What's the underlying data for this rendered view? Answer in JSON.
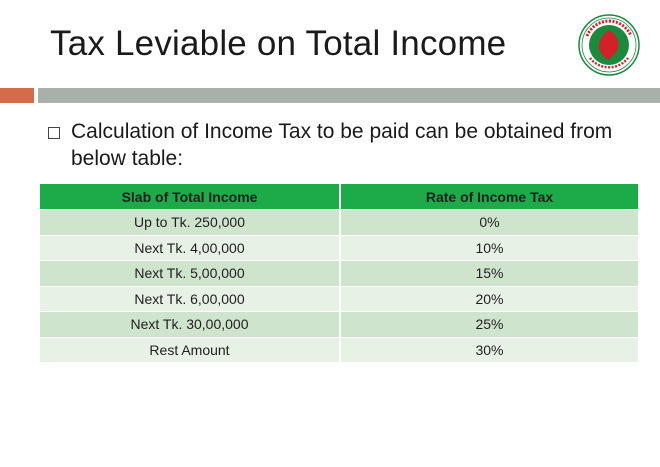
{
  "slide": {
    "title": "Tax Leviable on Total Income",
    "bullet": "Calculation of Income Tax to be paid can be obtained from below table:"
  },
  "table": {
    "headers": [
      "Slab of Total Income",
      "Rate of Income Tax"
    ],
    "rows": [
      [
        "Up to Tk. 250,000",
        "0%"
      ],
      [
        "Next Tk. 4,00,000",
        "10%"
      ],
      [
        "Next Tk. 5,00,000",
        "15%"
      ],
      [
        "Next Tk. 6,00,000",
        "20%"
      ],
      [
        "Next Tk. 30,00,000",
        "25%"
      ],
      [
        "Rest Amount",
        "30%"
      ]
    ]
  },
  "colors": {
    "header_green": "#1daa48",
    "row_dark": "#cfe4cd",
    "row_light": "#e8f1e6",
    "band_orange": "#d46b49",
    "band_gray": "#a8b0a9",
    "emblem_green": "#1a8a3c",
    "emblem_red": "#d4202a"
  },
  "icons": {
    "emblem": "government-seal-icon",
    "bullet": "hollow-square-bullet-icon"
  }
}
